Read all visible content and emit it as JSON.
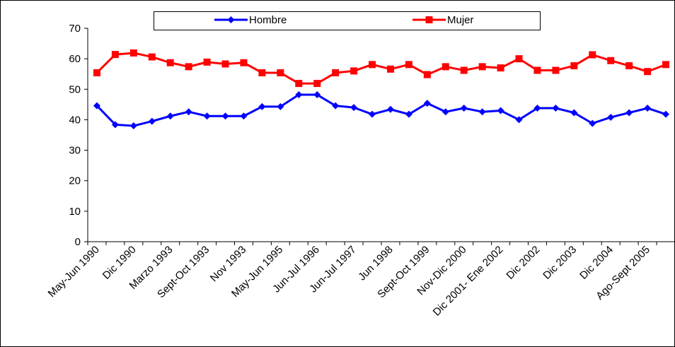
{
  "chart_data": {
    "type": "line",
    "title": "",
    "xlabel": "",
    "ylabel": "",
    "ylim": [
      0,
      70
    ],
    "yticks": [
      0,
      10,
      20,
      30,
      40,
      50,
      60,
      70
    ],
    "grid": false,
    "legend": {
      "placement": "top-center",
      "entries": [
        "Hombre",
        "Mujer"
      ]
    },
    "categories": [
      "May-Jun 1990",
      "",
      "Dic 1990",
      "",
      "Marzo 1993",
      "",
      "Sept-Oct 1993",
      "",
      "Nov 1993",
      "",
      "May-Jun 1995",
      "",
      "Jun-Jul 1996",
      "",
      "Jun-Jul 1997",
      "",
      "Jun 1998",
      "",
      "Sept-Oct 1999",
      "",
      "Nov-Dic 2000",
      "",
      "Dic 2001- Ene 2002",
      "",
      "Dic 2002",
      "",
      "Dic 2003",
      "",
      "Dic 2004",
      "",
      "Ago-Sept 2005",
      ""
    ],
    "tick_labels": [
      "May-Jun 1990",
      "Dic 1990",
      "Marzo 1993",
      "Sept-Oct 1993",
      "Nov 1993",
      "May-Jun 1995",
      "Jun-Jul 1996",
      "Jun-Jul 1997",
      "Jun 1998",
      "Sept-Oct 1999",
      "Nov-Dic 2000",
      "Dic 2001- Ene 2002",
      "Dic 2002",
      "Dic 2003",
      "Dic 2004",
      "Ago-Sept 2005"
    ],
    "series": [
      {
        "name": "Hombre",
        "color": "#0000FF",
        "marker": "diamond",
        "values": [
          44.6,
          38.4,
          38.0,
          39.5,
          41.2,
          42.6,
          41.2,
          41.2,
          41.2,
          44.3,
          44.3,
          48.2,
          48.2,
          44.6,
          44.0,
          41.8,
          43.4,
          41.8,
          45.4,
          42.6,
          43.8,
          42.6,
          43.0,
          40.0,
          43.8,
          43.8,
          42.3,
          38.8,
          40.8,
          42.3,
          43.8,
          41.8
        ]
      },
      {
        "name": "Mujer",
        "color": "#FF0000",
        "marker": "square",
        "values": [
          55.4,
          61.4,
          61.9,
          60.6,
          58.7,
          57.4,
          58.9,
          58.3,
          58.7,
          55.4,
          55.4,
          51.9,
          51.9,
          55.4,
          56.0,
          58.1,
          56.6,
          58.1,
          54.8,
          57.4,
          56.2,
          57.4,
          57.0,
          60.0,
          56.2,
          56.2,
          57.7,
          61.3,
          59.4,
          57.7,
          55.8,
          58.1
        ]
      }
    ]
  }
}
